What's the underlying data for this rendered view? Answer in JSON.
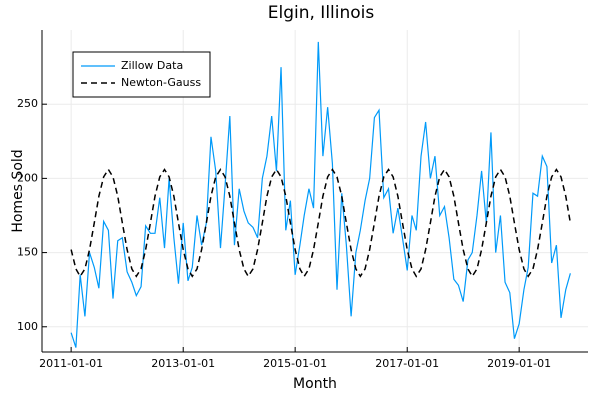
{
  "chart_data": {
    "type": "line",
    "title": "Elgin, Illinois",
    "xlabel": "Month",
    "ylabel": "Homes Sold",
    "x": [
      "2011-01-01",
      "2011-02-01",
      "2011-03-01",
      "2011-04-01",
      "2011-05-01",
      "2011-06-01",
      "2011-07-01",
      "2011-08-01",
      "2011-09-01",
      "2011-10-01",
      "2011-11-01",
      "2011-12-01",
      "2012-01-01",
      "2012-02-01",
      "2012-03-01",
      "2012-04-01",
      "2012-05-01",
      "2012-06-01",
      "2012-07-01",
      "2012-08-01",
      "2012-09-01",
      "2012-10-01",
      "2012-11-01",
      "2012-12-01",
      "2013-01-01",
      "2013-02-01",
      "2013-03-01",
      "2013-04-01",
      "2013-05-01",
      "2013-06-01",
      "2013-07-01",
      "2013-08-01",
      "2013-09-01",
      "2013-10-01",
      "2013-11-01",
      "2013-12-01",
      "2014-01-01",
      "2014-02-01",
      "2014-03-01",
      "2014-04-01",
      "2014-05-01",
      "2014-06-01",
      "2014-07-01",
      "2014-08-01",
      "2014-09-01",
      "2014-10-01",
      "2014-11-01",
      "2014-12-01",
      "2015-01-01",
      "2015-02-01",
      "2015-03-01",
      "2015-04-01",
      "2015-05-01",
      "2015-06-01",
      "2015-07-01",
      "2015-08-01",
      "2015-09-01",
      "2015-10-01",
      "2015-11-01",
      "2015-12-01",
      "2016-01-01",
      "2016-02-01",
      "2016-03-01",
      "2016-04-01",
      "2016-05-01",
      "2016-06-01",
      "2016-07-01",
      "2016-08-01",
      "2016-09-01",
      "2016-10-01",
      "2016-11-01",
      "2016-12-01",
      "2017-01-01",
      "2017-02-01",
      "2017-03-01",
      "2017-04-01",
      "2017-05-01",
      "2017-06-01",
      "2017-07-01",
      "2017-08-01",
      "2017-09-01",
      "2017-10-01",
      "2017-11-01",
      "2017-12-01",
      "2018-01-01",
      "2018-02-01",
      "2018-03-01",
      "2018-04-01",
      "2018-05-01",
      "2018-06-01",
      "2018-07-01",
      "2018-08-01",
      "2018-09-01",
      "2018-10-01",
      "2018-11-01",
      "2018-12-01",
      "2019-01-01",
      "2019-02-01",
      "2019-03-01",
      "2019-04-01",
      "2019-05-01",
      "2019-06-01",
      "2019-07-01",
      "2019-08-01",
      "2019-09-01",
      "2019-10-01",
      "2019-11-01",
      "2019-12-01"
    ],
    "series": [
      {
        "name": "Zillow Data",
        "color": "#009af9",
        "dash": false,
        "values": [
          96,
          86,
          135,
          107,
          150,
          140,
          126,
          171,
          165,
          119,
          158,
          160,
          137,
          130,
          121,
          127,
          168,
          163,
          163,
          187,
          153,
          200,
          160,
          129,
          170,
          131,
          140,
          175,
          155,
          170,
          228,
          205,
          153,
          195,
          242,
          155,
          193,
          178,
          170,
          167,
          160,
          200,
          215,
          242,
          205,
          275,
          165,
          185,
          135,
          155,
          175,
          193,
          180,
          292,
          215,
          248,
          210,
          125,
          190,
          155,
          107,
          150,
          165,
          185,
          200,
          241,
          246,
          187,
          193,
          163,
          180,
          160,
          138,
          175,
          165,
          215,
          238,
          200,
          215,
          175,
          181,
          160,
          132,
          128,
          117,
          145,
          150,
          175,
          205,
          170,
          231,
          150,
          175,
          130,
          123,
          92,
          102,
          125,
          140,
          190,
          188,
          215,
          208,
          143,
          155,
          106,
          125,
          136
        ]
      },
      {
        "name": "Newton-Gauss",
        "color": "#000000",
        "dash": true,
        "values": [
          152,
          139,
          134,
          139,
          152,
          170,
          188,
          201,
          206,
          201,
          188,
          170,
          152,
          139,
          134,
          139,
          152,
          170,
          188,
          201,
          206,
          201,
          188,
          170,
          152,
          139,
          134,
          139,
          152,
          170,
          188,
          201,
          206,
          201,
          188,
          170,
          152,
          139,
          134,
          139,
          152,
          170,
          188,
          201,
          206,
          201,
          188,
          170,
          152,
          139,
          134,
          139,
          152,
          170,
          188,
          201,
          206,
          201,
          188,
          170,
          152,
          139,
          134,
          139,
          152,
          170,
          188,
          201,
          206,
          201,
          188,
          170,
          152,
          139,
          134,
          139,
          152,
          170,
          188,
          201,
          206,
          201,
          188,
          170,
          152,
          139,
          134,
          139,
          152,
          170,
          188,
          201,
          206,
          201,
          188,
          170,
          152,
          139,
          134,
          139,
          152,
          170,
          188,
          201,
          206,
          201,
          188,
          170
        ]
      }
    ],
    "xlim": [
      "2010-06-25",
      "2020-03-25"
    ],
    "xticks": [
      "2011-01-01",
      "2013-01-01",
      "2015-01-01",
      "2017-01-01",
      "2019-01-01"
    ],
    "ylim": [
      83,
      300
    ],
    "yticks": [
      100,
      150,
      200,
      250
    ],
    "grid": true,
    "legend": "upper left"
  }
}
